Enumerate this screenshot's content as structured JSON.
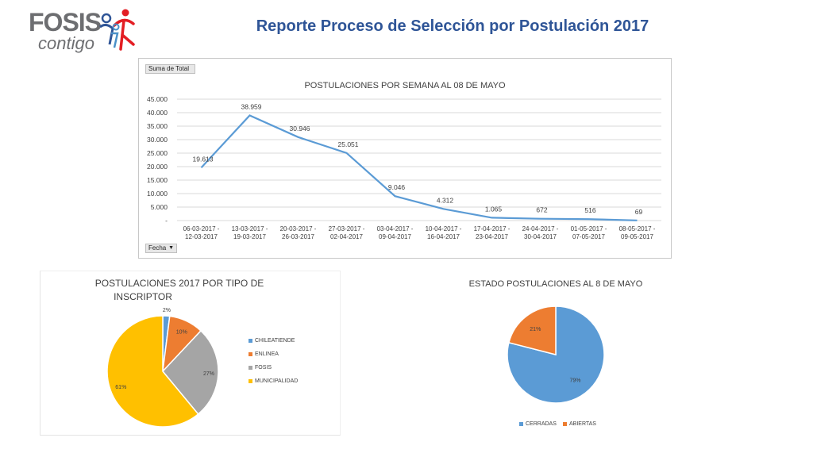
{
  "header": {
    "logo_name": "FOSIS",
    "logo_tagline": "contigo",
    "title": "Reporte Proceso de Selección por Postulación 2017"
  },
  "colors": {
    "title_blue": "#2f5597",
    "line_series": "#5b9bd5",
    "chileatiende": "#5b9bd5",
    "enlinea": "#ed7d31",
    "fosis": "#a5a5a5",
    "municipalidad": "#ffc000",
    "cerradas": "#5b9bd5",
    "abiertas": "#ed7d31"
  },
  "pivot": {
    "value_field": "Suma de Total",
    "axis_field": "Fecha"
  },
  "chart_data": [
    {
      "type": "line",
      "title": "POSTULACIONES POR SEMANA AL 08 DE MAYO",
      "categories": [
        [
          "06-03-2017 -",
          "12-03-2017"
        ],
        [
          "13-03-2017 -",
          "19-03-2017"
        ],
        [
          "20-03-2017 -",
          "26-03-2017"
        ],
        [
          "27-03-2017 -",
          "02-04-2017"
        ],
        [
          "03-04-2017 -",
          "09-04-2017"
        ],
        [
          "10-04-2017 -",
          "16-04-2017"
        ],
        [
          "17-04-2017 -",
          "23-04-2017"
        ],
        [
          "24-04-2017 -",
          "30-04-2017"
        ],
        [
          "01-05-2017 -",
          "07-05-2017"
        ],
        [
          "08-05-2017 -",
          "09-05-2017"
        ]
      ],
      "values": [
        19613,
        38959,
        30946,
        25051,
        9046,
        4312,
        1065,
        672,
        516,
        69
      ],
      "value_labels": [
        "19.613",
        "38.959",
        "30.946",
        "25.051",
        "9.046",
        "4.312",
        "1.065",
        "672",
        "516",
        "69"
      ],
      "ylim": [
        0,
        45000
      ],
      "yticks": [
        0,
        5000,
        10000,
        15000,
        20000,
        25000,
        30000,
        35000,
        40000,
        45000
      ],
      "ytick_labels": [
        "-",
        "5.000",
        "10.000",
        "15.000",
        "20.000",
        "25.000",
        "30.000",
        "35.000",
        "40.000",
        "45.000"
      ],
      "grid": true
    },
    {
      "type": "pie",
      "title": "POSTULACIONES 2017 POR TIPO DE INSCRIPTOR",
      "title_lines": [
        "POSTULACIONES 2017 POR TIPO DE",
        "INSCRIPTOR"
      ],
      "slices": [
        {
          "label": "CHILEATIENDE",
          "value": 2,
          "value_label": "2%"
        },
        {
          "label": "ENLINEA",
          "value": 10,
          "value_label": "10%"
        },
        {
          "label": "FOSIS",
          "value": 27,
          "value_label": "27%"
        },
        {
          "label": "MUNICIPALIDAD",
          "value": 61,
          "value_label": "61%"
        }
      ],
      "legend": "right"
    },
    {
      "type": "pie",
      "title": "ESTADO POSTULACIONES AL 8 DE MAYO",
      "slices": [
        {
          "label": "CERRADAS",
          "value": 79,
          "value_label": "79%"
        },
        {
          "label": "ABIERTAS",
          "value": 21,
          "value_label": "21%"
        }
      ],
      "legend": "bottom"
    }
  ]
}
